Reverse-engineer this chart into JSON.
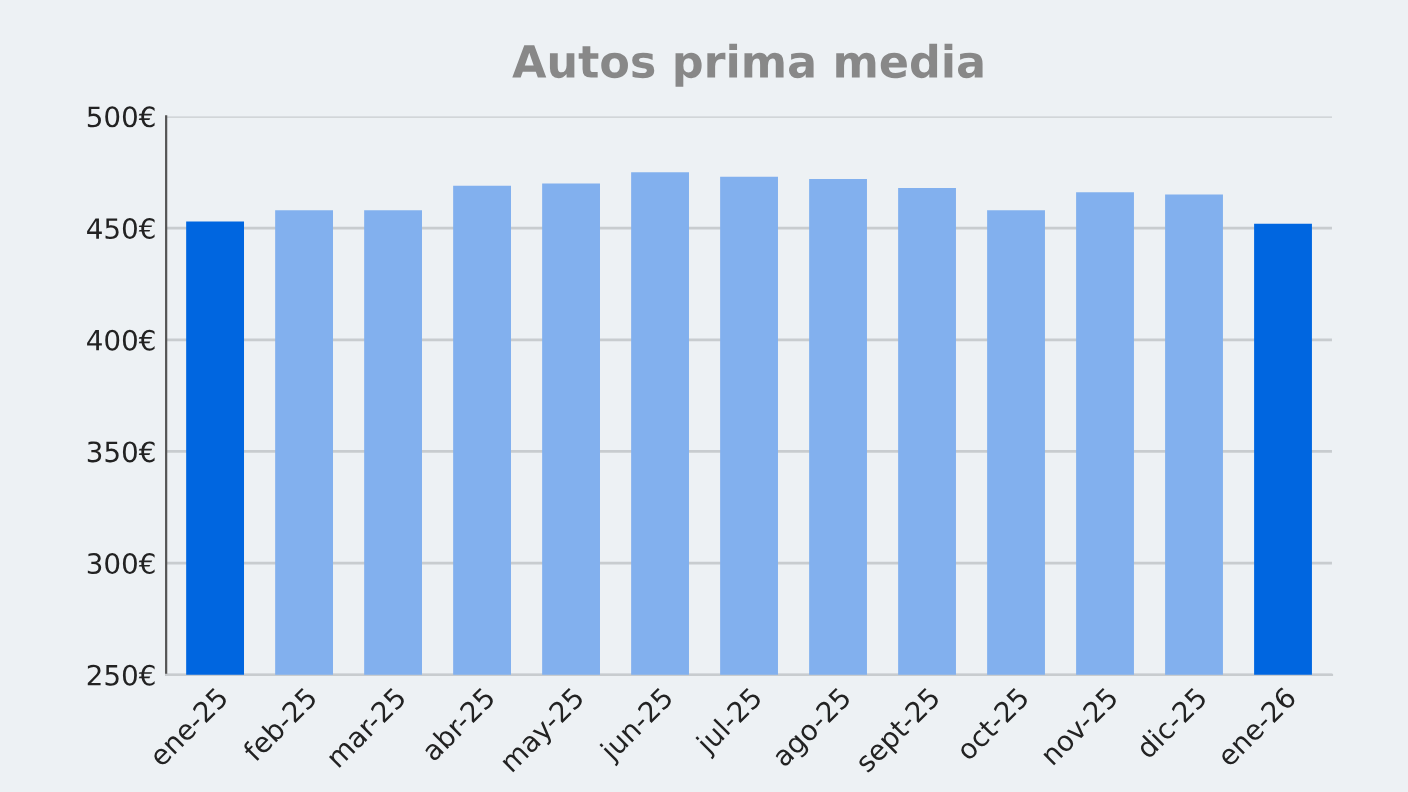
{
  "chart_data": {
    "type": "bar",
    "title": "Autos prima media",
    "categories": [
      "ene-25",
      "feb-25",
      "mar-25",
      "abr-25",
      "may-25",
      "jun-25",
      "jul-25",
      "ago-25",
      "sept-25",
      "oct-25",
      "nov-25",
      "dic-25",
      "ene-26"
    ],
    "values": [
      453,
      458,
      458,
      469,
      470,
      475,
      473,
      472,
      468,
      458,
      466,
      465,
      452
    ],
    "colors": [
      "#0066e0",
      "#82b0ee",
      "#82b0ee",
      "#82b0ee",
      "#82b0ee",
      "#82b0ee",
      "#82b0ee",
      "#82b0ee",
      "#82b0ee",
      "#82b0ee",
      "#82b0ee",
      "#82b0ee",
      "#0066e0"
    ],
    "ylim": [
      250,
      500
    ],
    "yticks": [
      {
        "value": 250,
        "label": "250€"
      },
      {
        "value": 300,
        "label": "300€"
      },
      {
        "value": 350,
        "label": "350€"
      },
      {
        "value": 400,
        "label": "400€"
      },
      {
        "value": 450,
        "label": "450€"
      },
      {
        "value": 500,
        "label": "500€"
      }
    ],
    "grid": "y"
  }
}
